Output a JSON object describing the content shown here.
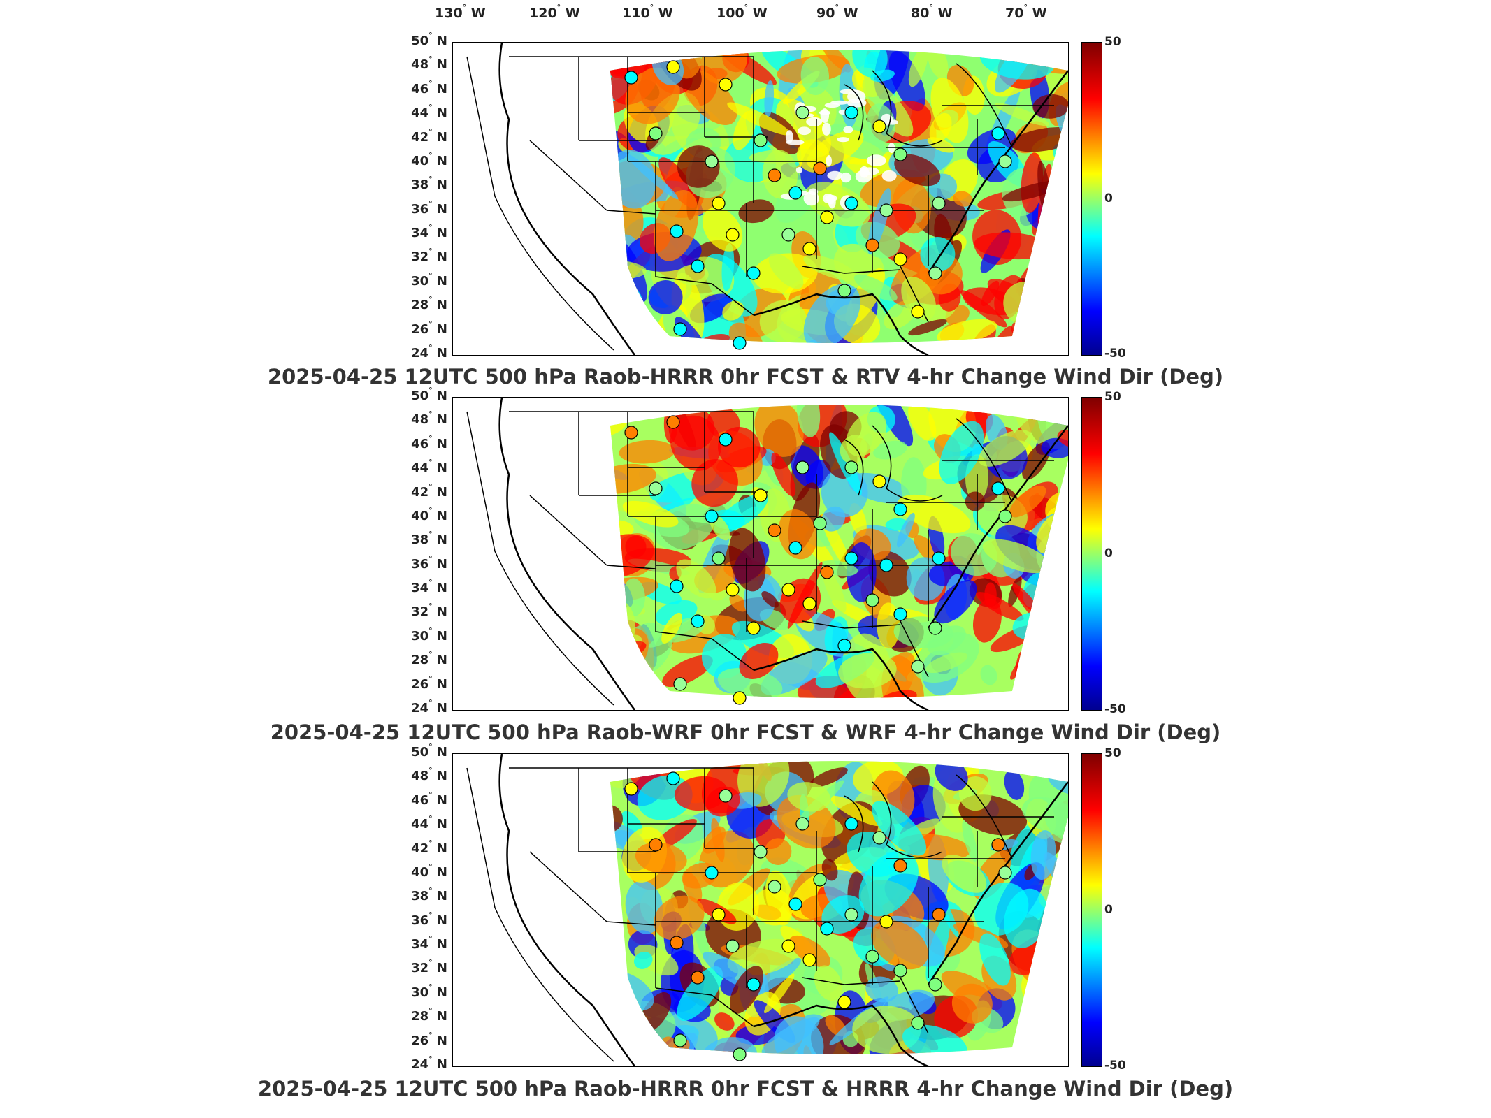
{
  "figure": {
    "lon_labels": [
      "130",
      "120",
      "110",
      "100",
      "90",
      "80",
      "70"
    ],
    "lon_suffix": "W",
    "lat_labels": [
      "50",
      "48",
      "46",
      "44",
      "42",
      "40",
      "38",
      "36",
      "34",
      "32",
      "30",
      "28",
      "26",
      "24"
    ],
    "lat_suffix": "N",
    "degree_symbol": "°",
    "colorbar": {
      "max_label": "50",
      "mid_label": "0",
      "min_label": "-50"
    }
  },
  "panels": [
    {
      "caption": "2025-04-25 12UTC 500 hPa Raob-HRRR 0hr FCST & RTV 4-hr Change Wind Dir (Deg)"
    },
    {
      "caption": "2025-04-25 12UTC 500 hPa Raob-WRF 0hr FCST & WRF 4-hr Change Wind Dir (Deg)"
    },
    {
      "caption": "2025-04-25 12UTC 500 hPa Raob-HRRR 0hr FCST & HRRR 4-hr Change Wind Dir (Deg)"
    }
  ],
  "colors": {
    "max": "#7f0000",
    "red": "#ff0000",
    "orange": "#ff8000",
    "yellow": "#ffff00",
    "green": "#80ff80",
    "cyan": "#00ffff",
    "blue": "#0000ff",
    "min": "#00008f"
  }
}
